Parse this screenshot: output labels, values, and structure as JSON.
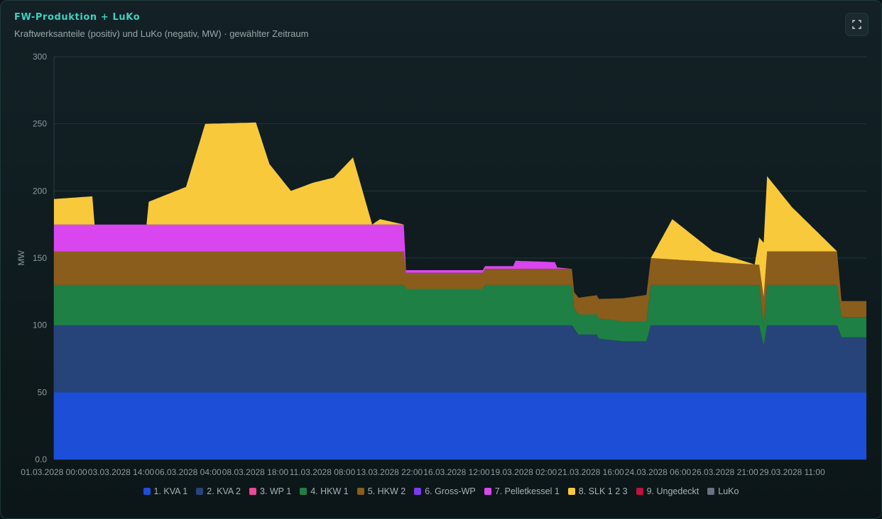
{
  "header": {
    "title": "FW-Produktion + LuKo",
    "subtitle": "Kraftwerksanteile (positiv) und LuKo (negativ, MW) · gewählter Zeitraum",
    "fullscreen_icon": "fullscreen-icon"
  },
  "chart_data": {
    "type": "area",
    "stacked": true,
    "ylabel": "MW",
    "ylim": [
      0,
      300
    ],
    "yticks": [
      "0.0",
      "50",
      "100",
      "150",
      "200",
      "250",
      "300"
    ],
    "xticks": [
      "01.03.2028 00:00",
      "03.03.2028 14:00",
      "06.03.2028 04:00",
      "08.03.2028 18:00",
      "11.03.2028 08:00",
      "13.03.2028 22:00",
      "16.03.2028 12:00",
      "19.03.2028 02:00",
      "21.03.2028 16:00",
      "24.03.2028 06:00",
      "26.03.2028 21:00",
      "29.03.2028 11:00"
    ],
    "grid": true,
    "legend_position": "bottom",
    "x_start": "01.03.2028 00:00",
    "x_end": "31.03.2028 00:00",
    "series": [
      {
        "name": "1. KVA 1",
        "color": "#1d4ed8",
        "points": [
          [
            "01.03.2028 00:00",
            50
          ],
          [
            "31.03.2028 00:00",
            50
          ]
        ]
      },
      {
        "name": "2. KVA 2",
        "color": "#27447a",
        "points": [
          [
            "01.03.2028 00:00",
            50
          ],
          [
            "20.03.2028 03:00",
            50
          ],
          [
            "20.03.2028 09:00",
            43
          ],
          [
            "21.03.2028 01:00",
            43
          ],
          [
            "21.03.2028 03:00",
            40
          ],
          [
            "22.03.2028 00:00",
            38
          ],
          [
            "22.03.2028 21:00",
            38
          ],
          [
            "23.03.2028 01:00",
            50
          ],
          [
            "27.03.2028 01:00",
            50
          ],
          [
            "27.03.2028 05:00",
            35
          ],
          [
            "27.03.2028 08:00",
            50
          ],
          [
            "29.03.2028 22:00",
            50
          ],
          [
            "30.03.2028 02:00",
            41
          ],
          [
            "31.03.2028 00:00",
            41
          ]
        ]
      },
      {
        "name": "3. WP 1",
        "color": "#ec4899",
        "points": [
          [
            "01.03.2028 00:00",
            0
          ],
          [
            "31.03.2028 00:00",
            0
          ]
        ]
      },
      {
        "name": "4. HKW 1",
        "color": "#1e8044",
        "points": [
          [
            "01.03.2028 00:00",
            30
          ],
          [
            "13.03.2028 22:00",
            30
          ],
          [
            "14.03.2028 00:00",
            27
          ],
          [
            "16.03.2028 20:00",
            27
          ],
          [
            "16.03.2028 22:00",
            30
          ],
          [
            "20.03.2028 03:00",
            30
          ],
          [
            "20.03.2028 05:00",
            15
          ],
          [
            "22.03.2028 21:00",
            15
          ],
          [
            "23.03.2028 01:00",
            30
          ],
          [
            "27.03.2028 01:00",
            30
          ],
          [
            "27.03.2028 05:00",
            15
          ],
          [
            "27.03.2028 08:00",
            30
          ],
          [
            "29.03.2028 22:00",
            30
          ],
          [
            "30.03.2028 02:00",
            15
          ],
          [
            "31.03.2028 00:00",
            15
          ]
        ]
      },
      {
        "name": "5. HKW 2",
        "color": "#8a5d1d",
        "points": [
          [
            "01.03.2028 00:00",
            25
          ],
          [
            "13.03.2028 22:00",
            25
          ],
          [
            "14.03.2028 00:00",
            12
          ],
          [
            "20.03.2028 03:00",
            12
          ],
          [
            "20.03.2028 05:00",
            12
          ],
          [
            "23.03.2028 01:00",
            20
          ],
          [
            "27.03.2028 01:00",
            15
          ],
          [
            "27.03.2028 08:00",
            25
          ],
          [
            "29.03.2028 22:00",
            25
          ],
          [
            "30.03.2028 02:00",
            12
          ],
          [
            "31.03.2028 00:00",
            12
          ]
        ]
      },
      {
        "name": "6. Gross-WP",
        "color": "#7c3aed",
        "points": [
          [
            "01.03.2028 00:00",
            0
          ],
          [
            "31.03.2028 00:00",
            0
          ]
        ]
      },
      {
        "name": "7. Pelletkessel 1",
        "color": "#d946ef",
        "points": [
          [
            "01.03.2028 00:00",
            20
          ],
          [
            "13.03.2028 22:00",
            20
          ],
          [
            "14.03.2028 00:00",
            2
          ],
          [
            "16.03.2028 22:00",
            2
          ],
          [
            "17.03.2028 23:00",
            2
          ],
          [
            "18.03.2028 01:00",
            6
          ],
          [
            "19.03.2028 12:00",
            5
          ],
          [
            "19.03.2028 14:00",
            1
          ],
          [
            "20.03.2028 03:00",
            0
          ],
          [
            "31.03.2028 00:00",
            0
          ]
        ]
      },
      {
        "name": "8. SLK 1 2 3",
        "color": "#f9c93c",
        "points": [
          [
            "01.03.2028 00:00",
            19
          ],
          [
            "02.03.2028 10:00",
            21
          ],
          [
            "02.03.2028 12:00",
            0
          ],
          [
            "04.03.2028 10:00",
            0
          ],
          [
            "04.03.2028 12:00",
            17
          ],
          [
            "05.03.2028 21:00",
            28
          ],
          [
            "06.03.2028 14:00",
            75
          ],
          [
            "08.03.2028 11:00",
            76
          ],
          [
            "08.03.2028 23:00",
            45
          ],
          [
            "09.03.2028 18:00",
            25
          ],
          [
            "10.03.2028 13:00",
            31
          ],
          [
            "11.03.2028 08:00",
            35
          ],
          [
            "12.03.2028 01:00",
            50
          ],
          [
            "12.03.2028 18:00",
            0
          ],
          [
            "13.03.2028 01:00",
            4
          ],
          [
            "13.03.2028 22:00",
            0
          ],
          [
            "23.03.2028 01:00",
            0
          ],
          [
            "23.03.2028 20:00",
            30
          ],
          [
            "25.03.2028 08:00",
            8
          ],
          [
            "26.03.2028 21:00",
            0
          ],
          [
            "27.03.2028 08:00",
            56
          ],
          [
            "28.03.2028 06:00",
            33
          ],
          [
            "29.03.2028 22:00",
            0
          ],
          [
            "31.03.2028 00:00",
            0
          ]
        ]
      },
      {
        "name": "9. Ungedeckt",
        "color": "#be123c",
        "points": [
          [
            "01.03.2028 00:00",
            0
          ],
          [
            "31.03.2028 00:00",
            0
          ]
        ]
      },
      {
        "name": "LuKo",
        "color": "#6b7280",
        "points": [
          [
            "01.03.2028 00:00",
            0
          ],
          [
            "31.03.2028 00:00",
            0
          ]
        ]
      }
    ]
  }
}
